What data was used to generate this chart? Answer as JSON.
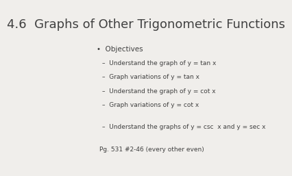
{
  "title": "4.6  Graphs of Other Trigonometric Functions",
  "title_fontsize": 13,
  "bg_color": "#f0eeeb",
  "text_color": "#404040",
  "bullet_label": "Objectives",
  "sub_items": [
    "Understand the graph of y = tan x",
    "Graph variations of y = tan x",
    "Understand the graph of y = cot x",
    "Graph variations of y = cot x"
  ],
  "extra_item": "Understand the graphs of y = csc  x and y = sec x",
  "footer": "Pg. 531 #2-46 (every other even)"
}
